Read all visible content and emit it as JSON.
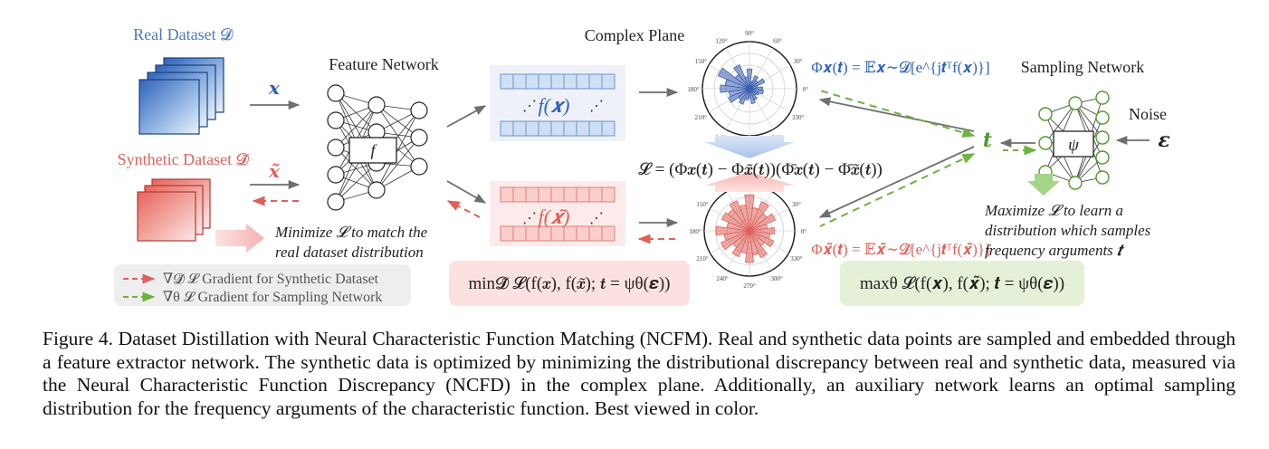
{
  "labels": {
    "real_dataset": "Real Dataset 𝓓",
    "synthetic_dataset": "Synthetic Dataset 𝓓̃",
    "x_input": "𝒙",
    "x_tilde_input": "𝒙̃",
    "feature_network": "Feature Network",
    "f_node": "f",
    "complex_plane": "Complex Plane",
    "sampling_network": "Sampling Network",
    "noise": "Noise",
    "epsilon": "𝜺",
    "t_symbol": "𝒕",
    "psi_node": "ψ",
    "fx": "f(𝒙)",
    "fxt": "f(𝒙̃)"
  },
  "equations": {
    "phi_real": "Φ𝒙(𝒕) = 𝔼𝒙∼𝓓[e^{j𝒕ᵀf(𝒙)}]",
    "phi_synth": "Φ𝒙̃(𝒕) = 𝔼𝒙̃∼𝓓̃[e^{j𝒕ᵀf(𝒙̃)}]",
    "loss": "𝓛 = (Φ𝒙(𝒕) − Φ𝒙̃(𝒕))(Φ̄𝒙(𝒕) − Φ̄𝒙̃(𝒕))",
    "min_obj": "min𝓓̃ 𝓛(f(𝒙), f(𝒙̃); 𝒕 = ψθ(𝜺))",
    "max_obj": "maxθ 𝓛(f(𝒙), f(𝒙̃); 𝒕 = ψθ(𝜺))"
  },
  "annotations": {
    "minimize_line1": "Minimize 𝓛 to match the",
    "minimize_line2": "real dataset distribution",
    "maximize_line1": "Maximize 𝓛 to learn a",
    "maximize_line2": "distribution which samples",
    "maximize_line3": "frequency arguments 𝒕"
  },
  "legend": {
    "synthetic_gradient": "∇𝓓̃ 𝓛 Gradient for Synthetic Dataset",
    "sampling_gradient": "∇θ 𝓛 Gradient for Sampling Network"
  },
  "polar": {
    "angle_labels": [
      "0°",
      "30°",
      "60°",
      "90°",
      "120°",
      "150°",
      "180°",
      "210°",
      "240°",
      "270°",
      "300°",
      "330°"
    ]
  },
  "colors": {
    "real": "#4a78c4",
    "synthetic": "#e0605a",
    "green": "#6cb33f",
    "gray_arrow": "#6f6f6f"
  },
  "caption": "Figure 4.  Dataset Distillation with Neural Characteristic Function Matching (NCFM). Real and synthetic data points are sampled and embedded through a feature extractor network. The synthetic data is optimized by minimizing the distributional discrepancy between real and synthetic data, measured via the Neural Characteristic Function Discrepancy (NCFD) in the complex plane. Additionally, an auxiliary network learns an optimal sampling distribution for the frequency arguments of the characteristic function. Best viewed in color."
}
